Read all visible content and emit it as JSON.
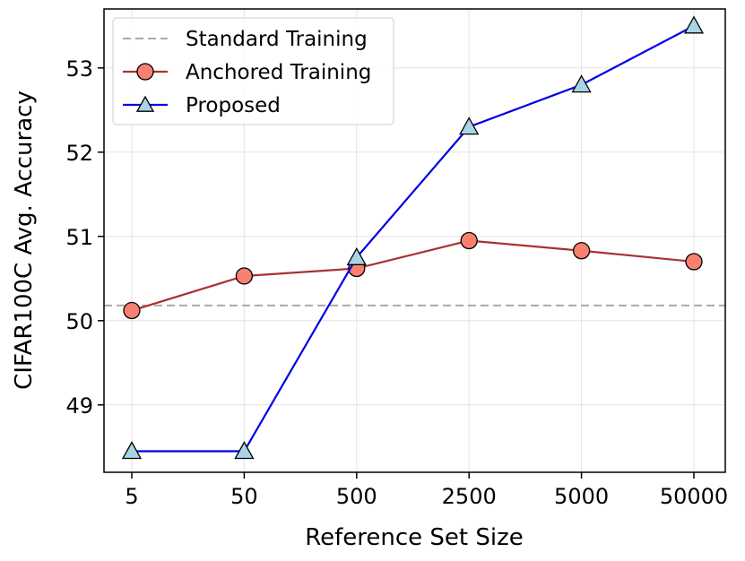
{
  "chart_data": {
    "type": "line",
    "xlabel": "Reference Set Size",
    "ylabel": "CIFAR100C Avg. Accuracy",
    "categories": [
      "5",
      "50",
      "500",
      "2500",
      "5000",
      "50000"
    ],
    "yticks": [
      "49",
      "50",
      "51",
      "52",
      "53"
    ],
    "ylim": [
      48.2,
      53.7
    ],
    "grid": true,
    "legend_position": "top-left",
    "baseline": {
      "name": "Standard Training",
      "value": 50.18,
      "color": "#aaaaaa",
      "style": "dashed"
    },
    "series": [
      {
        "name": "Anchored Training",
        "values": [
          50.12,
          50.53,
          50.62,
          50.95,
          50.83,
          50.7
        ],
        "line_color": "#a83232",
        "marker": "circle",
        "marker_color": "#f88070"
      },
      {
        "name": "Proposed",
        "values": [
          48.45,
          48.45,
          50.75,
          52.3,
          52.8,
          53.5
        ],
        "line_color": "#0000e6",
        "marker": "triangle",
        "marker_color": "#a8d4e6"
      }
    ]
  }
}
